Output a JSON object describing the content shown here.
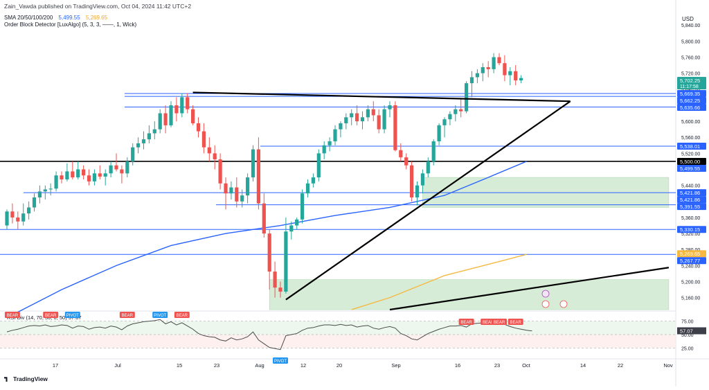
{
  "header": {
    "publisher_line": "Zain_Vawda published on TradingView.com, Oct 04, 2024 11:42 UTC+2",
    "sma_label": "SMA 20/50/100/200",
    "sma_values": [
      "5,499.55",
      "5,269.65"
    ],
    "ob_label": "Order Block Detector [LuxAlgo] (5, 3, 3, ——, 1, Wick)",
    "currency": "USD"
  },
  "footer": {
    "logo_text": "TradingView"
  },
  "colors": {
    "up": "#26a69a",
    "down": "#ef5350",
    "sma_blue": "#2962ff",
    "sma_orange": "#f5b942",
    "hline": "#2962ff",
    "trend": "#000000",
    "zone": "#c8e6c9",
    "rsi_line": "#4a4a4a",
    "bear": "#ef5350",
    "pivot": "#2196f3",
    "last_price_tag": "#26a69a"
  },
  "chart_data": {
    "type": "candlestick",
    "price_axis": {
      "ticks": [
        5840,
        5800,
        5760,
        5720,
        5680,
        5640,
        5600,
        5560,
        5520,
        5480,
        5440,
        5400,
        5360,
        5320,
        5280,
        5240,
        5200,
        5160
      ],
      "tick_labels": [
        "5,840.00",
        "5,800.00",
        "5,760.00",
        "5,720.00",
        "5,680.00",
        "5,640.00",
        "5,600.00",
        "5,560.00",
        "5,520.00",
        "5,480.00",
        "5,440.00",
        "5,400.00",
        "5,360.00",
        "5,320.00",
        "5,280.00",
        "5,240.00",
        "5,200.00",
        "5,160.00"
      ],
      "range": [
        5130,
        5875
      ]
    },
    "time_axis": {
      "labels": [
        "17",
        "Jul",
        "15",
        "23",
        "Aug",
        "12",
        "20",
        "Sep",
        "16",
        "23",
        "Oct",
        "14",
        "22",
        "Nov"
      ]
    },
    "candles_ohlc": [
      [
        5340,
        5380,
        5330,
        5375
      ],
      [
        5375,
        5395,
        5345,
        5360
      ],
      [
        5360,
        5375,
        5330,
        5350
      ],
      [
        5350,
        5395,
        5340,
        5370
      ],
      [
        5370,
        5400,
        5355,
        5385
      ],
      [
        5385,
        5420,
        5375,
        5410
      ],
      [
        5410,
        5440,
        5395,
        5425
      ],
      [
        5425,
        5440,
        5405,
        5430
      ],
      [
        5430,
        5445,
        5415,
        5432
      ],
      [
        5432,
        5475,
        5425,
        5465
      ],
      [
        5465,
        5475,
        5445,
        5455
      ],
      [
        5455,
        5495,
        5450,
        5475
      ],
      [
        5475,
        5500,
        5455,
        5460
      ],
      [
        5460,
        5500,
        5455,
        5480
      ],
      [
        5480,
        5490,
        5455,
        5465
      ],
      [
        5465,
        5480,
        5440,
        5450
      ],
      [
        5450,
        5480,
        5440,
        5470
      ],
      [
        5470,
        5490,
        5455,
        5462
      ],
      [
        5462,
        5480,
        5440,
        5470
      ],
      [
        5470,
        5500,
        5460,
        5490
      ],
      [
        5490,
        5520,
        5475,
        5480
      ],
      [
        5480,
        5490,
        5445,
        5470
      ],
      [
        5470,
        5510,
        5460,
        5500
      ],
      [
        5500,
        5545,
        5490,
        5535
      ],
      [
        5535,
        5560,
        5520,
        5545
      ],
      [
        5545,
        5575,
        5530,
        5555
      ],
      [
        5555,
        5590,
        5545,
        5570
      ],
      [
        5570,
        5600,
        5555,
        5580
      ],
      [
        5580,
        5630,
        5570,
        5620
      ],
      [
        5620,
        5640,
        5570,
        5590
      ],
      [
        5590,
        5650,
        5585,
        5640
      ],
      [
        5640,
        5660,
        5600,
        5620
      ],
      [
        5620,
        5670,
        5610,
        5660
      ],
      [
        5660,
        5670,
        5620,
        5630
      ],
      [
        5630,
        5640,
        5590,
        5595
      ],
      [
        5595,
        5610,
        5560,
        5575
      ],
      [
        5575,
        5595,
        5520,
        5535
      ],
      [
        5535,
        5560,
        5500,
        5520
      ],
      [
        5520,
        5540,
        5480,
        5505
      ],
      [
        5505,
        5520,
        5430,
        5445
      ],
      [
        5445,
        5460,
        5380,
        5420
      ],
      [
        5420,
        5450,
        5405,
        5435
      ],
      [
        5435,
        5460,
        5385,
        5400
      ],
      [
        5400,
        5430,
        5385,
        5415
      ],
      [
        5415,
        5470,
        5395,
        5460
      ],
      [
        5460,
        5540,
        5450,
        5530
      ],
      [
        5530,
        5560,
        5380,
        5395
      ],
      [
        5395,
        5420,
        5310,
        5320
      ],
      [
        5320,
        5330,
        5180,
        5225
      ],
      [
        5225,
        5250,
        5160,
        5185
      ],
      [
        5185,
        5200,
        5160,
        5175
      ],
      [
        5175,
        5360,
        5170,
        5325
      ],
      [
        5325,
        5350,
        5305,
        5340
      ],
      [
        5340,
        5360,
        5330,
        5355
      ],
      [
        5355,
        5430,
        5345,
        5420
      ],
      [
        5420,
        5455,
        5410,
        5445
      ],
      [
        5445,
        5470,
        5435,
        5460
      ],
      [
        5460,
        5530,
        5450,
        5520
      ],
      [
        5520,
        5550,
        5505,
        5540
      ],
      [
        5540,
        5560,
        5525,
        5550
      ],
      [
        5550,
        5590,
        5540,
        5580
      ],
      [
        5580,
        5600,
        5560,
        5595
      ],
      [
        5595,
        5620,
        5580,
        5610
      ],
      [
        5610,
        5630,
        5590,
        5620
      ],
      [
        5620,
        5640,
        5590,
        5600
      ],
      [
        5600,
        5625,
        5580,
        5610
      ],
      [
        5610,
        5640,
        5600,
        5630
      ],
      [
        5630,
        5650,
        5600,
        5615
      ],
      [
        5615,
        5630,
        5570,
        5580
      ],
      [
        5580,
        5640,
        5570,
        5630
      ],
      [
        5630,
        5650,
        5610,
        5640
      ],
      [
        5640,
        5650,
        5525,
        5528
      ],
      [
        5528,
        5545,
        5500,
        5510
      ],
      [
        5510,
        5520,
        5480,
        5490
      ],
      [
        5490,
        5500,
        5400,
        5410
      ],
      [
        5410,
        5450,
        5390,
        5440
      ],
      [
        5440,
        5480,
        5420,
        5470
      ],
      [
        5470,
        5510,
        5460,
        5500
      ],
      [
        5500,
        5555,
        5490,
        5550
      ],
      [
        5550,
        5595,
        5540,
        5590
      ],
      [
        5590,
        5610,
        5560,
        5605
      ],
      [
        5605,
        5625,
        5590,
        5618
      ],
      [
        5618,
        5640,
        5600,
        5630
      ],
      [
        5630,
        5655,
        5610,
        5625
      ],
      [
        5625,
        5700,
        5620,
        5695
      ],
      [
        5695,
        5725,
        5660,
        5710
      ],
      [
        5710,
        5730,
        5695,
        5720
      ],
      [
        5720,
        5745,
        5700,
        5735
      ],
      [
        5735,
        5750,
        5710,
        5730
      ],
      [
        5730,
        5770,
        5720,
        5760
      ],
      [
        5760,
        5770,
        5740,
        5745
      ],
      [
        5745,
        5765,
        5700,
        5715
      ],
      [
        5715,
        5735,
        5690,
        5725
      ],
      [
        5725,
        5740,
        5690,
        5702
      ],
      [
        5702,
        5715,
        5695,
        5708
      ]
    ],
    "horizontal_levels": [
      {
        "price": 5669.35,
        "label": "5,669.35",
        "color": "#2962ff"
      },
      {
        "price": 5662.25,
        "label": "5,662.25",
        "color": "#2962ff"
      },
      {
        "price": 5635.66,
        "label": "5,635.66",
        "color": "#2962ff"
      },
      {
        "price": 5538.01,
        "label": "5,538.01",
        "color": "#2962ff"
      },
      {
        "price": 5500.0,
        "label": "5,500.00",
        "color": "#000000"
      },
      {
        "price": 5421.86,
        "label": "5,421.86",
        "color": "#2962ff"
      },
      {
        "price": 5391.55,
        "label": "5,391.55",
        "color": "#2962ff"
      },
      {
        "price": 5330.15,
        "label": "5,330.15",
        "color": "#2962ff"
      },
      {
        "price": 5267.77,
        "label": "5,267.77",
        "color": "#2962ff"
      }
    ],
    "axis_tags": [
      {
        "price": 5702.25,
        "label": "5,702.25",
        "sub": "11:17:58",
        "bg": "#26a69a"
      },
      {
        "price": 5669.35,
        "label": "5,669.35",
        "bg": "#2962ff"
      },
      {
        "price": 5662.25,
        "label": "5,662.25",
        "bg": "#2962ff"
      },
      {
        "price": 5635.66,
        "label": "5,635.66",
        "bg": "#2962ff"
      },
      {
        "price": 5538.01,
        "label": "5,538.01",
        "bg": "#2962ff"
      },
      {
        "price": 5500.0,
        "label": "5,500.00",
        "bg": "#000000"
      },
      {
        "price": 5499.55,
        "label": "5,499.55",
        "bg": "#2962ff"
      },
      {
        "price": 5421.86,
        "label": "5,421.86",
        "bg": "#2962ff"
      },
      {
        "price": 5421.86,
        "label": "5,421.86",
        "bg": "#2962ff",
        "offset": 1
      },
      {
        "price": 5391.55,
        "label": "5,391.55",
        "bg": "#2962ff"
      },
      {
        "price": 5330.15,
        "label": "5,330.15",
        "bg": "#2962ff"
      },
      {
        "price": 5269.65,
        "label": "5,269.65",
        "bg": "#f5b942"
      },
      {
        "price": 5267.77,
        "label": "5,267.77",
        "bg": "#2962ff"
      }
    ],
    "sma_series": [
      {
        "name": "SMA 100",
        "color": "#2962ff",
        "points": [
          [
            0,
            5110
          ],
          [
            10,
            5180
          ],
          [
            20,
            5240
          ],
          [
            30,
            5290
          ],
          [
            40,
            5320
          ],
          [
            50,
            5340
          ],
          [
            60,
            5365
          ],
          [
            70,
            5385
          ],
          [
            80,
            5415
          ],
          [
            88,
            5460
          ],
          [
            95,
            5500
          ]
        ]
      },
      {
        "name": "SMA 200",
        "color": "#f5b942",
        "points": [
          [
            63,
            5130
          ],
          [
            70,
            5160
          ],
          [
            80,
            5215
          ],
          [
            90,
            5250
          ],
          [
            95,
            5268
          ]
        ]
      }
    ],
    "demand_zones": [
      {
        "from_index": 76,
        "to_index": 121,
        "low": 5385,
        "high": 5460
      },
      {
        "from_index": 48,
        "to_index": 121,
        "low": 5130,
        "high": 5205
      }
    ],
    "trendlines": [
      {
        "x1": 34,
        "y1": 5672,
        "x2": 103,
        "y2": 5650
      },
      {
        "x1": 51,
        "y1": 5155,
        "x2": 103,
        "y2": 5650
      },
      {
        "x1": 70,
        "y1": 5130,
        "x2": 121,
        "y2": 5235
      }
    ],
    "rsi": {
      "label": "RSI Div",
      "value_label": "57.07",
      "levels": [
        {
          "value": 75,
          "label": "75.00"
        },
        {
          "value": 57.07,
          "label": "57.07"
        },
        {
          "value": 25,
          "label": "25.00"
        }
      ],
      "values": [
        55,
        58,
        60,
        63,
        66,
        67,
        66,
        68,
        65,
        66,
        68,
        67,
        62,
        66,
        65,
        60,
        63,
        64,
        62,
        66,
        64,
        59,
        66,
        70,
        72,
        74,
        75,
        76,
        78,
        70,
        74,
        68,
        72,
        66,
        60,
        52,
        48,
        46,
        45,
        40,
        38,
        44,
        40,
        42,
        46,
        55,
        40,
        33,
        26,
        24,
        22,
        48,
        50,
        52,
        58,
        62,
        63,
        66,
        68,
        68,
        67,
        69,
        67,
        68,
        64,
        66,
        67,
        62,
        60,
        63,
        65,
        62,
        52,
        48,
        42,
        40,
        46,
        52,
        56,
        60,
        63,
        66,
        66,
        67,
        64,
        70,
        71,
        72,
        73,
        72,
        74,
        69,
        65,
        62,
        60,
        58,
        57
      ]
    },
    "signals": [
      {
        "index": 1,
        "text": "BEAR",
        "kind": "bear",
        "pos": "top"
      },
      {
        "index": 8,
        "text": "BEAR",
        "kind": "bear",
        "pos": "top"
      },
      {
        "index": 12,
        "text": "PIVOT",
        "kind": "pivot",
        "pos": "top"
      },
      {
        "index": 22,
        "text": "BEAR",
        "kind": "bear",
        "pos": "top"
      },
      {
        "index": 28,
        "text": "PIVOT",
        "kind": "pivot",
        "pos": "top"
      },
      {
        "index": 32,
        "text": "BEAR",
        "kind": "bear",
        "pos": "top"
      },
      {
        "index": 50,
        "text": "PIVOT",
        "kind": "pivot",
        "pos": "bottom"
      },
      {
        "index": 84,
        "text": "BEAR",
        "kind": "bear",
        "pos": "top"
      },
      {
        "index": 88,
        "text": "BEAR",
        "kind": "bear",
        "pos": "top"
      },
      {
        "index": 90,
        "text": "BEAR",
        "kind": "bear",
        "pos": "top"
      },
      {
        "index": 93,
        "text": "BEAR",
        "kind": "bear",
        "pos": "top"
      }
    ],
    "rsi_legend": "RSI Div (14, 70, 30, 0, 50)",
    "rsi_tick_labels": [
      "75.00",
      "50.00",
      "25.00"
    ]
  }
}
